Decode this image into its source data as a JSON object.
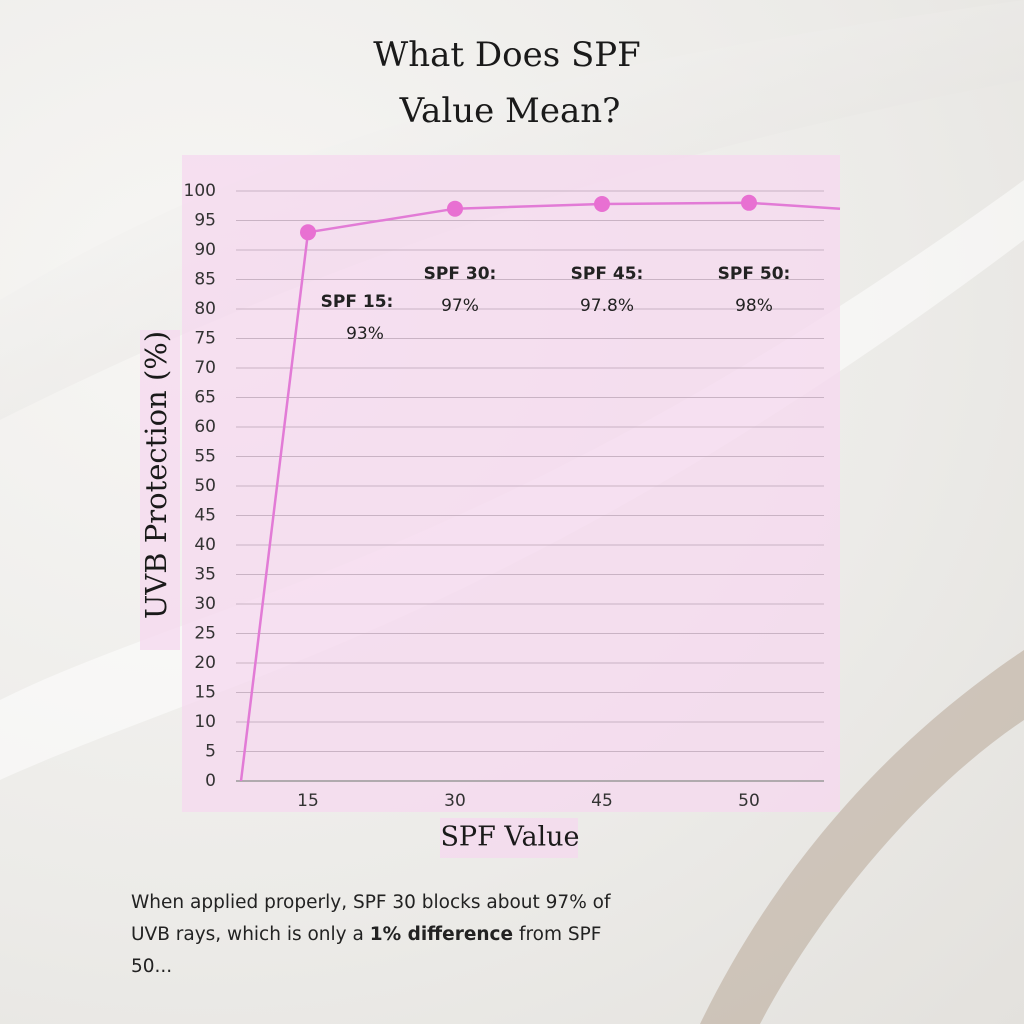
{
  "chart_data": {
    "type": "line",
    "title_lines": [
      "What Does SPF",
      "Value Mean?"
    ],
    "y_label": "UVB Protection (%)",
    "x_label": "SPF Value",
    "categories": [
      null,
      "15",
      "30",
      "45",
      "50",
      null
    ],
    "values": [
      0,
      93,
      97,
      97.8,
      98,
      97
    ],
    "value_labels": [
      null,
      "93%",
      "97%",
      "97.8%",
      "98%",
      null
    ],
    "point_labels": [
      null,
      "SPF 15:",
      "SPF 30:",
      "SPF 45:",
      "SPF 50:",
      null
    ],
    "color": "#e27bd6",
    "marker_color": "#e870d2",
    "ylim": [
      0,
      100
    ],
    "yticks": [
      0,
      5,
      10,
      15,
      20,
      25,
      30,
      35,
      40,
      45,
      50,
      55,
      60,
      65,
      70,
      75,
      80,
      85,
      90,
      95,
      100
    ],
    "grid": true,
    "footer": {
      "text_before": "When applied properly, SPF 30 blocks about 97% of UVB rays, which is only a ",
      "bold": "1% difference",
      "text_after": " from SPF 50..."
    }
  }
}
